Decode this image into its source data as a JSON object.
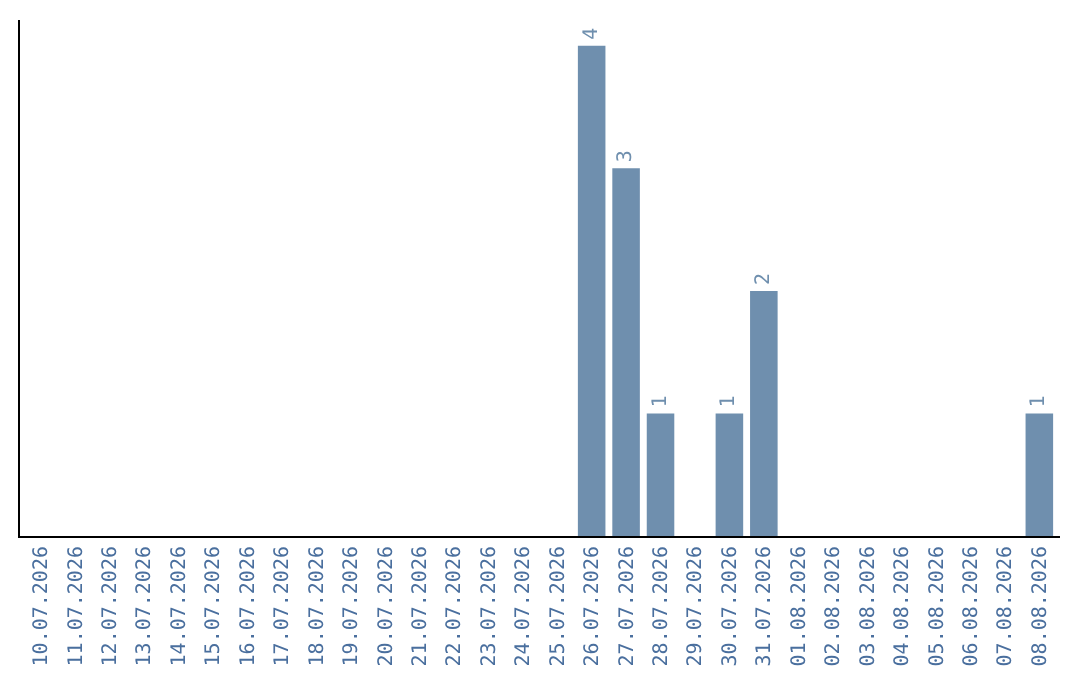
{
  "chart_data": {
    "type": "bar",
    "categories": [
      "10.07.2026",
      "11.07.2026",
      "12.07.2026",
      "13.07.2026",
      "14.07.2026",
      "15.07.2026",
      "16.07.2026",
      "17.07.2026",
      "18.07.2026",
      "19.07.2026",
      "20.07.2026",
      "21.07.2026",
      "22.07.2026",
      "23.07.2026",
      "24.07.2026",
      "25.07.2026",
      "26.07.2026",
      "27.07.2026",
      "28.07.2026",
      "29.07.2026",
      "30.07.2026",
      "31.07.2026",
      "01.08.2026",
      "02.08.2026",
      "03.08.2026",
      "04.08.2026",
      "05.08.2026",
      "06.08.2026",
      "07.08.2026",
      "08.08.2026"
    ],
    "values": [
      null,
      null,
      null,
      null,
      null,
      null,
      null,
      null,
      null,
      null,
      null,
      null,
      null,
      null,
      null,
      null,
      4,
      3,
      1,
      null,
      1,
      2,
      null,
      null,
      null,
      null,
      null,
      null,
      null,
      1
    ],
    "value_labels": [
      null,
      null,
      null,
      null,
      null,
      null,
      null,
      null,
      null,
      null,
      null,
      null,
      null,
      null,
      null,
      null,
      "4",
      "3",
      "1",
      null,
      "1",
      "2",
      null,
      null,
      null,
      null,
      null,
      null,
      null,
      "1"
    ],
    "color": "#6f8fae",
    "tick_labels": "x",
    "grid": false
  }
}
